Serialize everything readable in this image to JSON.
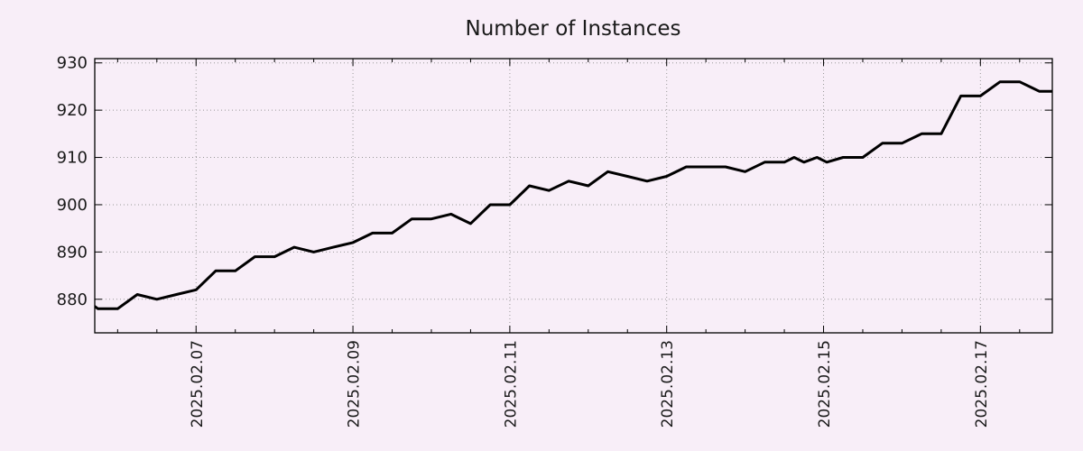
{
  "page": {
    "background_color": "#f8eef8",
    "text_color": "#1a1a1a"
  },
  "chart_data": {
    "type": "line",
    "title": "Number of Instances",
    "line_color": "#000000",
    "grid": true,
    "grid_color": "#999999",
    "legend": "none",
    "x_axis": {
      "range": [
        "2025-02-05 17:00",
        "2025-02-17 22:00"
      ],
      "major_ticks": [
        {
          "time": "2025-02-07 00:00",
          "label": "2025.02.07"
        },
        {
          "time": "2025-02-09 00:00",
          "label": "2025.02.09"
        },
        {
          "time": "2025-02-11 00:00",
          "label": "2025.02.11"
        },
        {
          "time": "2025-02-13 00:00",
          "label": "2025.02.13"
        },
        {
          "time": "2025-02-15 00:00",
          "label": "2025.02.15"
        },
        {
          "time": "2025-02-17 00:00",
          "label": "2025.02.17"
        }
      ],
      "minor_tick_interval_hours": 12,
      "label_rotation_degrees": -90
    },
    "y_axis": {
      "range": [
        872.9,
        930.9
      ],
      "ticks": [
        880,
        890,
        900,
        910,
        920,
        930
      ],
      "tick_labels": [
        "880",
        "890",
        "900",
        "910",
        "920",
        "930"
      ]
    },
    "points": [
      [
        "2025-02-05 12:00",
        881
      ],
      [
        "2025-02-05 18:00",
        878
      ],
      [
        "2025-02-06 00:00",
        878
      ],
      [
        "2025-02-06 06:00",
        881
      ],
      [
        "2025-02-06 12:00",
        880
      ],
      [
        "2025-02-06 18:00",
        881
      ],
      [
        "2025-02-07 00:00",
        882
      ],
      [
        "2025-02-07 06:00",
        886
      ],
      [
        "2025-02-07 12:00",
        886
      ],
      [
        "2025-02-07 18:00",
        889
      ],
      [
        "2025-02-08 00:00",
        889
      ],
      [
        "2025-02-08 06:00",
        891
      ],
      [
        "2025-02-08 12:00",
        890
      ],
      [
        "2025-02-08 18:00",
        891
      ],
      [
        "2025-02-09 00:00",
        892
      ],
      [
        "2025-02-09 06:00",
        894
      ],
      [
        "2025-02-09 12:00",
        894
      ],
      [
        "2025-02-09 18:00",
        897
      ],
      [
        "2025-02-10 00:00",
        897
      ],
      [
        "2025-02-10 06:00",
        898
      ],
      [
        "2025-02-10 12:00",
        896
      ],
      [
        "2025-02-10 18:00",
        900
      ],
      [
        "2025-02-11 00:00",
        900
      ],
      [
        "2025-02-11 06:00",
        904
      ],
      [
        "2025-02-11 12:00",
        903
      ],
      [
        "2025-02-11 18:00",
        905
      ],
      [
        "2025-02-12 00:00",
        904
      ],
      [
        "2025-02-12 06:00",
        907
      ],
      [
        "2025-02-12 12:00",
        906
      ],
      [
        "2025-02-12 18:00",
        905
      ],
      [
        "2025-02-13 00:00",
        906
      ],
      [
        "2025-02-13 06:00",
        908
      ],
      [
        "2025-02-13 12:00",
        908
      ],
      [
        "2025-02-13 18:00",
        908
      ],
      [
        "2025-02-14 00:00",
        907
      ],
      [
        "2025-02-14 06:00",
        909
      ],
      [
        "2025-02-14 12:00",
        909
      ],
      [
        "2025-02-14 15:00",
        910
      ],
      [
        "2025-02-14 18:00",
        909
      ],
      [
        "2025-02-14 22:00",
        910
      ],
      [
        "2025-02-15 01:00",
        909
      ],
      [
        "2025-02-15 06:00",
        910
      ],
      [
        "2025-02-15 12:00",
        910
      ],
      [
        "2025-02-15 18:00",
        913
      ],
      [
        "2025-02-16 00:00",
        913
      ],
      [
        "2025-02-16 06:00",
        915
      ],
      [
        "2025-02-16 12:00",
        915
      ],
      [
        "2025-02-16 18:00",
        923
      ],
      [
        "2025-02-17 00:00",
        923
      ],
      [
        "2025-02-17 06:00",
        926
      ],
      [
        "2025-02-17 12:00",
        926
      ],
      [
        "2025-02-17 18:00",
        924
      ],
      [
        "2025-02-18 00:00",
        924
      ]
    ]
  }
}
